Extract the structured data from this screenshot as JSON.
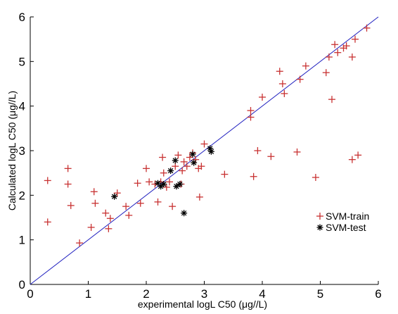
{
  "chart_data": {
    "type": "scatter",
    "title": "",
    "xlabel": "experimental logL C50 (μg//L)",
    "ylabel": "Calculated logL C50 (μg//L)",
    "xlim": [
      0,
      6
    ],
    "ylim": [
      0,
      6
    ],
    "xticks": [
      "0",
      "1",
      "2",
      "3",
      "4",
      "5",
      "6"
    ],
    "yticks": [
      "0",
      "1",
      "2",
      "3",
      "4",
      "5",
      "6"
    ],
    "grid": false,
    "legend_position": "lower-right",
    "reference_line": {
      "from": [
        0,
        0
      ],
      "to": [
        6,
        6
      ],
      "color": "#1f1fbf"
    },
    "series": [
      {
        "name": "SVM-train",
        "marker": "plus",
        "color": "#c83232",
        "points": [
          [
            0.3,
            2.33
          ],
          [
            0.3,
            1.4
          ],
          [
            0.65,
            2.6
          ],
          [
            0.65,
            2.25
          ],
          [
            0.7,
            1.77
          ],
          [
            0.85,
            0.93
          ],
          [
            1.05,
            1.28
          ],
          [
            1.1,
            2.08
          ],
          [
            1.12,
            1.82
          ],
          [
            1.3,
            1.6
          ],
          [
            1.35,
            1.25
          ],
          [
            1.38,
            1.48
          ],
          [
            1.5,
            2.05
          ],
          [
            1.65,
            1.75
          ],
          [
            1.7,
            1.55
          ],
          [
            1.85,
            2.27
          ],
          [
            1.9,
            1.82
          ],
          [
            2.0,
            2.6
          ],
          [
            2.05,
            2.3
          ],
          [
            2.15,
            2.25
          ],
          [
            2.2,
            1.85
          ],
          [
            2.25,
            2.3
          ],
          [
            2.28,
            2.85
          ],
          [
            2.3,
            2.5
          ],
          [
            2.35,
            2.18
          ],
          [
            2.4,
            2.3
          ],
          [
            2.45,
            1.75
          ],
          [
            2.5,
            2.65
          ],
          [
            2.55,
            2.9
          ],
          [
            2.6,
            2.25
          ],
          [
            2.62,
            2.55
          ],
          [
            2.65,
            2.75
          ],
          [
            2.7,
            2.65
          ],
          [
            2.75,
            2.85
          ],
          [
            2.8,
            2.95
          ],
          [
            2.85,
            2.8
          ],
          [
            2.9,
            2.6
          ],
          [
            2.92,
            1.96
          ],
          [
            2.95,
            2.65
          ],
          [
            3.0,
            3.15
          ],
          [
            3.35,
            2.47
          ],
          [
            3.8,
            3.9
          ],
          [
            3.8,
            3.75
          ],
          [
            3.85,
            2.42
          ],
          [
            3.92,
            3.0
          ],
          [
            4.0,
            4.2
          ],
          [
            4.15,
            2.87
          ],
          [
            4.3,
            4.78
          ],
          [
            4.35,
            4.5
          ],
          [
            4.38,
            4.28
          ],
          [
            4.6,
            2.97
          ],
          [
            4.65,
            4.6
          ],
          [
            4.75,
            4.9
          ],
          [
            4.92,
            2.4
          ],
          [
            5.1,
            4.75
          ],
          [
            5.15,
            5.1
          ],
          [
            5.2,
            4.15
          ],
          [
            5.25,
            5.38
          ],
          [
            5.3,
            5.2
          ],
          [
            5.4,
            5.3
          ],
          [
            5.45,
            5.35
          ],
          [
            5.55,
            2.8
          ],
          [
            5.55,
            5.1
          ],
          [
            5.6,
            5.5
          ],
          [
            5.65,
            2.9
          ],
          [
            5.8,
            5.75
          ]
        ]
      },
      {
        "name": "SVM-test",
        "marker": "asterisk",
        "color": "#000000",
        "points": [
          [
            1.45,
            1.97
          ],
          [
            2.2,
            2.27
          ],
          [
            2.25,
            2.2
          ],
          [
            2.3,
            2.25
          ],
          [
            2.42,
            2.55
          ],
          [
            2.5,
            2.78
          ],
          [
            2.52,
            2.2
          ],
          [
            2.58,
            2.25
          ],
          [
            2.65,
            1.6
          ],
          [
            2.8,
            2.92
          ],
          [
            2.82,
            2.73
          ],
          [
            3.1,
            3.05
          ],
          [
            3.12,
            2.98
          ]
        ]
      }
    ]
  }
}
